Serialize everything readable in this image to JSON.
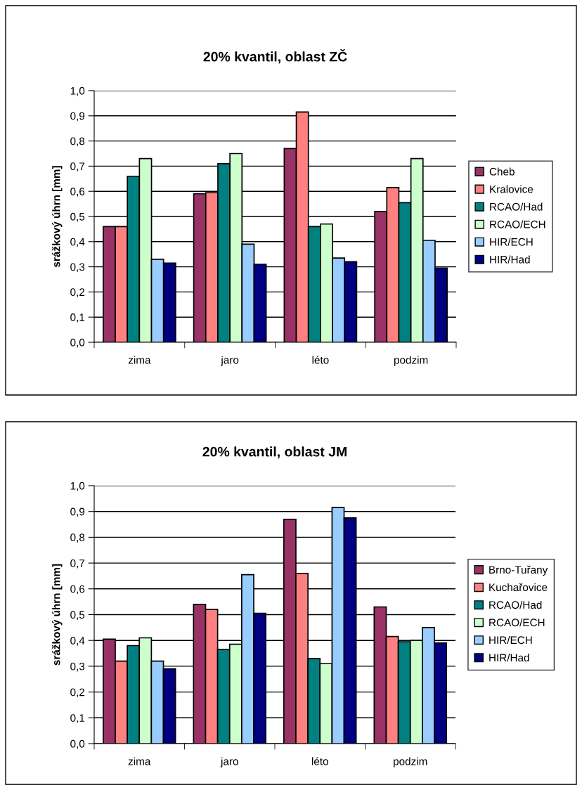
{
  "chart_data": [
    {
      "type": "bar",
      "title": "20% kvantil, oblast ZČ",
      "ylabel": "srážkový úhrn [mm]",
      "categories": [
        "zima",
        "jaro",
        "léto",
        "podzim"
      ],
      "series": [
        {
          "name": "Cheb",
          "color": "#993366",
          "values": [
            0.46,
            0.59,
            0.77,
            0.52
          ]
        },
        {
          "name": "Kralovice",
          "color": "#ff8080",
          "values": [
            0.46,
            0.595,
            0.915,
            0.615
          ]
        },
        {
          "name": "RCAO/Had",
          "color": "#008080",
          "values": [
            0.66,
            0.71,
            0.46,
            0.555
          ]
        },
        {
          "name": "RCAO/ECH",
          "color": "#ccffcc",
          "values": [
            0.73,
            0.75,
            0.47,
            0.73
          ]
        },
        {
          "name": "HIR/ECH",
          "color": "#99ccff",
          "values": [
            0.33,
            0.39,
            0.335,
            0.405
          ]
        },
        {
          "name": "HIR/Had",
          "color": "#000080",
          "values": [
            0.315,
            0.31,
            0.32,
            0.295
          ]
        }
      ],
      "ylim": [
        0,
        1
      ],
      "yticks": [
        {
          "value": 0,
          "label": "0,0"
        },
        {
          "value": 0.1,
          "label": "0,1"
        },
        {
          "value": 0.2,
          "label": "0,2"
        },
        {
          "value": 0.3,
          "label": "0,3"
        },
        {
          "value": 0.4,
          "label": "0,4"
        },
        {
          "value": 0.5,
          "label": "0,5"
        },
        {
          "value": 0.6,
          "label": "0,6"
        },
        {
          "value": 0.7,
          "label": "0,7"
        },
        {
          "value": 0.8,
          "label": "0,8"
        },
        {
          "value": 0.9,
          "label": "0,9"
        },
        {
          "value": 1,
          "label": "1,0"
        }
      ],
      "grid": "y",
      "legend": "right"
    },
    {
      "type": "bar",
      "title": "20% kvantil, oblast JM",
      "ylabel": "srážkový úhrn [mm]",
      "categories": [
        "zima",
        "jaro",
        "léto",
        "podzim"
      ],
      "series": [
        {
          "name": "Brno-Tuřany",
          "color": "#993366",
          "values": [
            0.405,
            0.54,
            0.87,
            0.53
          ]
        },
        {
          "name": "Kuchařovice",
          "color": "#ff8080",
          "values": [
            0.32,
            0.52,
            0.66,
            0.415
          ]
        },
        {
          "name": "RCAO/Had",
          "color": "#008080",
          "values": [
            0.38,
            0.365,
            0.33,
            0.395
          ]
        },
        {
          "name": "RCAO/ECH",
          "color": "#ccffcc",
          "values": [
            0.41,
            0.385,
            0.31,
            0.4
          ]
        },
        {
          "name": "HIR/ECH",
          "color": "#99ccff",
          "values": [
            0.32,
            0.655,
            0.915,
            0.45
          ]
        },
        {
          "name": "HIR/Had",
          "color": "#000080",
          "values": [
            0.29,
            0.505,
            0.875,
            0.39
          ]
        }
      ],
      "ylim": [
        0,
        1
      ],
      "yticks": [
        {
          "value": 0,
          "label": "0,0"
        },
        {
          "value": 0.1,
          "label": "0,1"
        },
        {
          "value": 0.2,
          "label": "0,2"
        },
        {
          "value": 0.3,
          "label": "0,3"
        },
        {
          "value": 0.4,
          "label": "0,4"
        },
        {
          "value": 0.5,
          "label": "0,5"
        },
        {
          "value": 0.6,
          "label": "0,6"
        },
        {
          "value": 0.7,
          "label": "0,7"
        },
        {
          "value": 0.8,
          "label": "0,8"
        },
        {
          "value": 0.9,
          "label": "0,9"
        },
        {
          "value": 1,
          "label": "1,0"
        }
      ],
      "grid": "y",
      "legend": "right"
    }
  ]
}
